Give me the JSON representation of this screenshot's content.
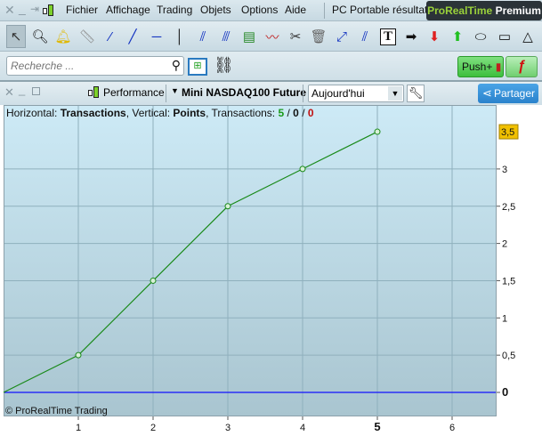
{
  "menubar": {
    "items": [
      "Fichier",
      "Affichage",
      "Trading",
      "Objets",
      "Options",
      "Aide"
    ],
    "workspace": "PC Portable résultat",
    "brand_a": "ProRealTime",
    "brand_b": "Premium"
  },
  "toolbar": {
    "tools": [
      "pointer",
      "zoom",
      "alert-bell",
      "ruler",
      "segment",
      "line",
      "horizontal-line",
      "vertical-line",
      "channel",
      "parallel-lines",
      "indicator-chart",
      "trend-chart",
      "tools",
      "trash",
      "point-to-point",
      "fan",
      "text",
      "arrow-right",
      "arrow-down-red",
      "arrow-up-green",
      "ellipse",
      "rectangle",
      "triangle"
    ]
  },
  "search": {
    "placeholder": "Recherche ..."
  },
  "push": {
    "label": "Push+"
  },
  "window": {
    "chart_type": "Performance",
    "instrument": "Mini NASDAQ100 Future",
    "period": "Aujourd'hui",
    "share": "Partager"
  },
  "info": {
    "h_label": "Horizontal: ",
    "h_value": "Transactions",
    "v_label": ", Vertical: ",
    "v_value": "Points",
    "t_label": ", Transactions: ",
    "t_win": "5",
    "sep1": " / ",
    "t_neutral": "0",
    "sep2": " / ",
    "t_loss": "0"
  },
  "copyright": "© ProRealTime Trading",
  "colors": {
    "line": "#1a8a1a",
    "zero_line": "#1010ff",
    "last_badge": "#f0c000"
  },
  "chart_data": {
    "type": "line",
    "x": [
      0,
      1,
      2,
      3,
      4,
      5
    ],
    "values": [
      0,
      0.5,
      1.5,
      2.5,
      3,
      3.5
    ],
    "xlim": [
      0,
      6.5
    ],
    "ylim": [
      -0.3,
      3.85
    ],
    "x_ticks": [
      "1",
      "2",
      "3",
      "4",
      "5",
      "6"
    ],
    "y_ticks": [
      "0",
      "0,5",
      "1",
      "1,5",
      "2",
      "2,5",
      "3"
    ],
    "last_value_label": "3,5",
    "grid": true
  }
}
